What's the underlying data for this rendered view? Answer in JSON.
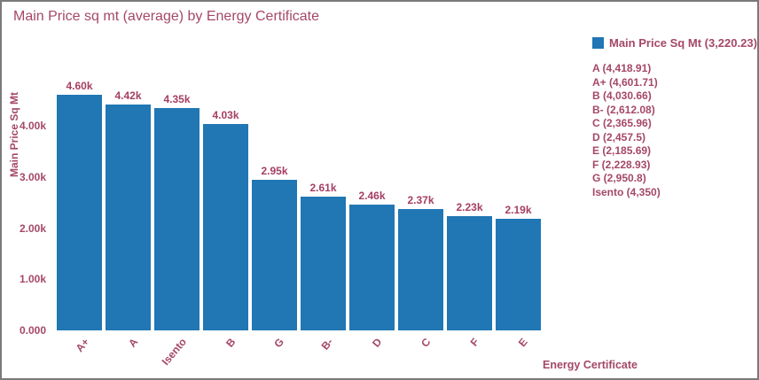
{
  "title": "Main Price sq mt (average) by Energy Certificate",
  "colors": {
    "bar": "#2077b4",
    "text": "#a54868",
    "value_label": "#a53e63",
    "border": "#7a7a7a",
    "background": "#ffffff"
  },
  "legend": {
    "title": "Main Price Sq Mt (3,220.23)",
    "swatch_icon": "blue-square-swatch",
    "items": [
      "A (4,418.91)",
      "A+ (4,601.71)",
      "B (4,030.66)",
      "B- (2,612.08)",
      "C (2,365.96)",
      "D (2,457.5)",
      "E (2,185.69)",
      "F (2,228.93)",
      "G (2,950.8)",
      "Isento (4,350)"
    ]
  },
  "chart_data": {
    "type": "bar",
    "title": "Main Price sq mt (average) by Energy Certificate",
    "xlabel": "Energy Certificate",
    "ylabel": "Main Price Sq Mt",
    "series_name": "Main Price Sq Mt",
    "series_average": "3,220.23",
    "categories": [
      "A+",
      "A",
      "Isento",
      "B",
      "G",
      "B-",
      "D",
      "C",
      "F",
      "E"
    ],
    "values": [
      4601.71,
      4418.91,
      4350,
      4030.66,
      2950.8,
      2612.08,
      2457.5,
      2365.96,
      2228.93,
      2185.69
    ],
    "bar_labels": [
      "4.60k",
      "4.42k",
      "4.35k",
      "4.03k",
      "2.95k",
      "2.61k",
      "2.46k",
      "2.37k",
      "2.23k",
      "2.19k"
    ],
    "ytick_labels": [
      "0.000",
      "1.00k",
      "2.00k",
      "3.00k",
      "4.00k"
    ],
    "ytick_values": [
      0,
      1000,
      2000,
      3000,
      4000
    ],
    "ylim": [
      0,
      4700
    ],
    "grid": false,
    "legend_position": "right",
    "xtick_rotation_deg": -50
  }
}
